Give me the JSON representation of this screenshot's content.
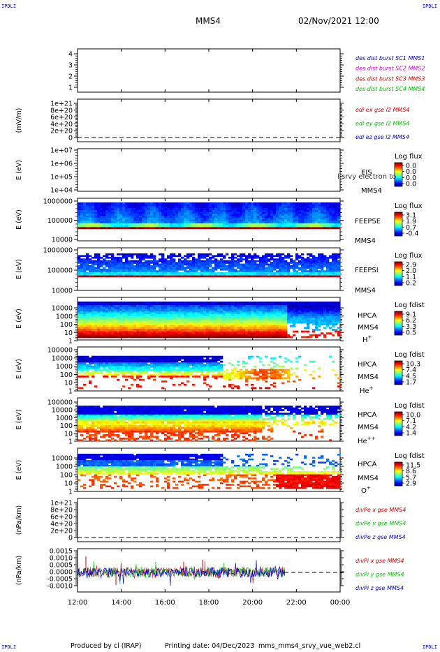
{
  "header": {
    "corner_label": "IPDLI",
    "spacecraft": "MMS4",
    "datetime": "02/Nov/2021 12:00"
  },
  "footer": {
    "produced_by": "Produced by cl (IRAP)",
    "printing_date": "Printing date: 04/Dec/2023",
    "filename": "mms_mms4_srvy_vue_web2.cl"
  },
  "colors": {
    "c1": "#0000cc",
    "c2": "#cc00cc",
    "c3": "#cc0000",
    "c4": "#00bb00",
    "x": "#cc0000",
    "y": "#00bb00",
    "z": "#0000cc"
  },
  "chart_data": {
    "type": "heatmap",
    "x_ticks": [
      "12:00",
      "14:00",
      "16:00",
      "18:00",
      "20:00",
      "22:00",
      "00:00"
    ],
    "panels": [
      {
        "id": "burst",
        "ylabel": "",
        "yticks": [
          "4",
          "3",
          "2",
          "1"
        ],
        "legend": [
          {
            "text": "des dist burst SC1 MMS1",
            "color": "c1"
          },
          {
            "text": "des dist burst SC2 MMS2",
            "color": "c2"
          },
          {
            "text": "des dist burst SC3 MMS3",
            "color": "c3"
          },
          {
            "text": "des dist burst SC4 MMS4",
            "color": "c4"
          }
        ]
      },
      {
        "id": "edi",
        "ylabel": "(mV/m)",
        "yticks": [
          "1e+21",
          "8e+20",
          "6e+20",
          "4e+20",
          "2e+20",
          "0"
        ],
        "legend": [
          {
            "text": "edi ex gse l2 MMS4",
            "color": "x"
          },
          {
            "text": "edi ey gse l2 MMS4",
            "color": "y"
          },
          {
            "text": "edi ez gse l2 MMS4",
            "color": "z"
          }
        ]
      },
      {
        "id": "eis",
        "ylabel": "E (eV)",
        "yticks": [
          "1e+07",
          "1e+06",
          "1e+05",
          "1e+04"
        ],
        "instrument": [
          "EIS",
          "MMS4"
        ],
        "overlay": "l srvy electron to",
        "colorbar_title": "Log flux",
        "colorbar_ticks": [
          "0.0",
          "0.0",
          "0.0",
          "0.0"
        ]
      },
      {
        "id": "feepse",
        "ylabel": "E (eV)",
        "yticks": [
          "1000000",
          "100000",
          "10000"
        ],
        "instrument": [
          "FEEPSE",
          "MMS4"
        ],
        "colorbar_title": "Log flux",
        "colorbar_ticks": [
          "3.1",
          "1.9",
          "0.7",
          "-0.4"
        ]
      },
      {
        "id": "feepsi",
        "ylabel": "E (eV)",
        "yticks": [
          "1000000",
          "100000",
          "10000"
        ],
        "instrument": [
          "FEEPSI",
          "MMS4"
        ],
        "colorbar_title": "Log flux",
        "colorbar_ticks": [
          "2.9",
          "2.0",
          "1.1",
          "0.2"
        ]
      },
      {
        "id": "hpca_h",
        "ylabel": "E (eV)",
        "yticks": [
          "10000",
          "1000",
          "100",
          "10",
          "1"
        ],
        "instrument": [
          "HPCA",
          "MMS4"
        ],
        "species": "H",
        "charge": "+",
        "colorbar_title": "Log fdist",
        "colorbar_ticks": [
          "9.1",
          "6.2",
          "3.3",
          "0.5"
        ]
      },
      {
        "id": "hpca_he",
        "ylabel": "E (eV)",
        "yticks": [
          "100000",
          "10000",
          "1000",
          "100",
          "10",
          "1"
        ],
        "instrument": [
          "HPCA",
          "MMS4"
        ],
        "species": "He",
        "charge": "+",
        "colorbar_title": "Log fdist",
        "colorbar_ticks": [
          "10.3",
          "7.4",
          "4.5",
          "1.7"
        ]
      },
      {
        "id": "hpca_hepp",
        "ylabel": "E (eV)",
        "yticks": [
          "100000",
          "10000",
          "1000",
          "100",
          "10",
          "1"
        ],
        "instrument": [
          "HPCA",
          "MMS4"
        ],
        "species": "He",
        "charge": "++",
        "colorbar_title": "Log fdist",
        "colorbar_ticks": [
          "10.0",
          "7.1",
          "4.2",
          "1.4"
        ]
      },
      {
        "id": "hpca_o",
        "ylabel": "E (eV)",
        "yticks": [
          "10000",
          "1000",
          "100",
          "10",
          "1"
        ],
        "instrument": [
          "HPCA",
          "MMS4"
        ],
        "species": "O",
        "charge": "+",
        "colorbar_title": "Log fdist",
        "colorbar_ticks": [
          "11.5",
          "8.6",
          "5.7",
          "2.9"
        ]
      },
      {
        "id": "divpe",
        "ylabel": "(nPa/km)",
        "yticks": [
          "1e+21",
          "8e+20",
          "6e+20",
          "4e+20",
          "2e+20",
          "0"
        ],
        "legend": [
          {
            "text": "divPe x gse MMS4",
            "color": "x"
          },
          {
            "text": "divPe y gse MMS4",
            "color": "y"
          },
          {
            "text": "divPe z gse MMS4",
            "color": "z"
          }
        ]
      },
      {
        "id": "divpi",
        "ylabel": "(nPa/km)",
        "yticks": [
          "0.0015",
          "0.0010",
          "0.0005",
          "0.0000",
          "-0.0005",
          "-0.0010"
        ],
        "legend": [
          {
            "text": "divPi x gse MMS4",
            "color": "x"
          },
          {
            "text": "divPi y gse MMS4",
            "color": "y"
          },
          {
            "text": "divPi z gse MMS4",
            "color": "z"
          }
        ]
      }
    ]
  }
}
